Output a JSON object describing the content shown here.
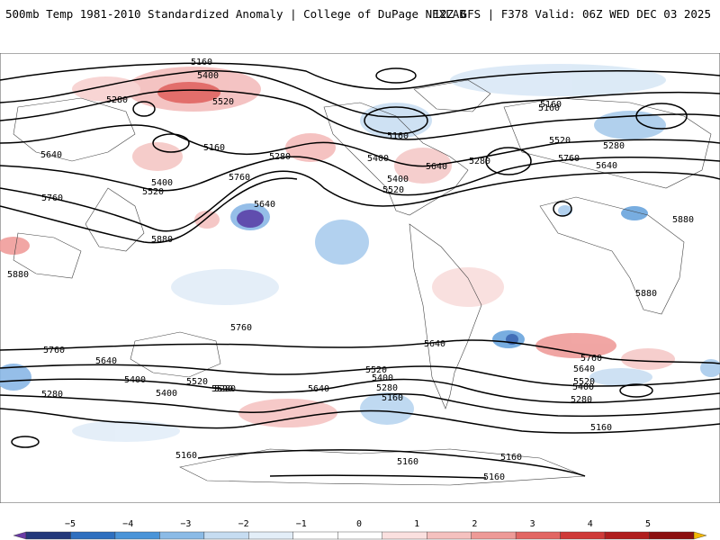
{
  "header": {
    "title": "500mb Temp 1981-2010 Standardized Anomaly | College of DuPage NEXLAB",
    "run_info": "12Z GFS | F378 Valid: 06Z WED DEC 03 2025"
  },
  "contour_labels": [
    "5160",
    "5400",
    "5280",
    "5520",
    "5160",
    "5640",
    "5280",
    "5760",
    "5400",
    "5520",
    "5640",
    "5880",
    "5760",
    "5880",
    "5160",
    "5400",
    "5640",
    "5280",
    "5520",
    "5400",
    "5520",
    "5160",
    "5280",
    "5640",
    "5760",
    "5880",
    "5880",
    "5760",
    "5640",
    "5760",
    "5640",
    "5520",
    "5400",
    "5280",
    "5520",
    "5400",
    "5280",
    "5160",
    "5520",
    "5400",
    "5280",
    "5160",
    "5640",
    "5760",
    "5640",
    "5520",
    "5400",
    "5280",
    "5160",
    "5160",
    "5160",
    "5160",
    "5160"
  ],
  "colorbar": {
    "ticks": [
      "−5",
      "−4",
      "−3",
      "−2",
      "−1",
      "0",
      "1",
      "2",
      "3",
      "4",
      "5"
    ],
    "colors": [
      "#6a3ba6",
      "#23387a",
      "#2e6fbf",
      "#4a94d8",
      "#8bbbe6",
      "#c6dcf1",
      "#e3eef8",
      "#ffffff",
      "#ffffff",
      "#fbe0df",
      "#f5c1bf",
      "#ee9a97",
      "#e26663",
      "#cf3a38",
      "#b01d1d",
      "#8c0f0f",
      "#f2b705"
    ]
  }
}
